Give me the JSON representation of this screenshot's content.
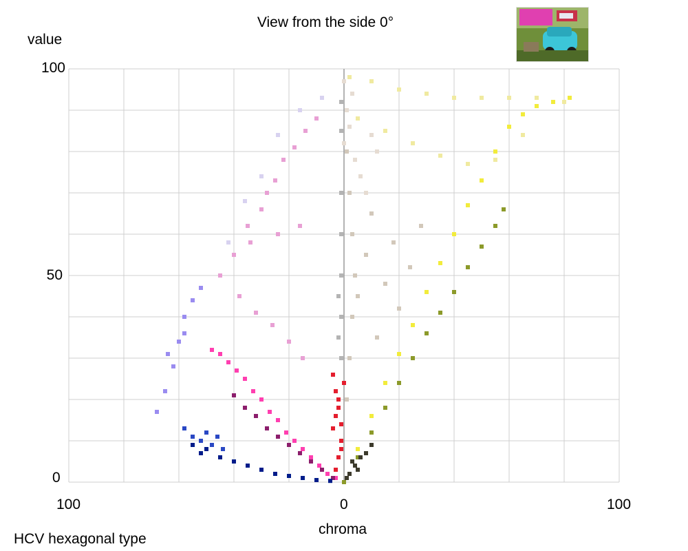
{
  "chart_data": {
    "type": "scatter",
    "title": "View from the side 0°",
    "xlabel": "chroma",
    "ylabel": "value",
    "footer": "HCV hexagonal type",
    "xlim": [
      -100,
      100
    ],
    "ylim": [
      0,
      100
    ],
    "x_tick_labels": [
      "100",
      "0",
      "100"
    ],
    "y_tick_labels": [
      "100",
      "50",
      "0"
    ],
    "grid": true,
    "series": [
      {
        "color": "#f2ec3c",
        "points": [
          [
            0,
            0
          ],
          [
            5,
            8
          ],
          [
            10,
            16
          ],
          [
            15,
            24
          ],
          [
            20,
            31
          ],
          [
            25,
            38
          ],
          [
            30,
            46
          ],
          [
            35,
            53
          ],
          [
            40,
            60
          ],
          [
            45,
            67
          ],
          [
            50,
            73
          ],
          [
            55,
            80
          ],
          [
            60,
            86
          ],
          [
            65,
            89
          ],
          [
            70,
            91
          ],
          [
            76,
            92
          ],
          [
            82,
            93
          ]
        ]
      },
      {
        "color": "#8c9a2a",
        "points": [
          [
            0,
            0
          ],
          [
            5,
            6
          ],
          [
            10,
            12
          ],
          [
            15,
            18
          ],
          [
            20,
            24
          ],
          [
            25,
            30
          ],
          [
            30,
            36
          ],
          [
            35,
            41
          ],
          [
            40,
            46
          ],
          [
            45,
            52
          ],
          [
            50,
            57
          ],
          [
            55,
            62
          ],
          [
            58,
            66
          ]
        ]
      },
      {
        "color": "#f0eaa0",
        "points": [
          [
            2,
            98
          ],
          [
            10,
            97
          ],
          [
            20,
            95
          ],
          [
            30,
            94
          ],
          [
            40,
            93
          ],
          [
            50,
            93
          ],
          [
            60,
            93
          ],
          [
            70,
            93
          ],
          [
            80,
            92
          ],
          [
            5,
            88
          ],
          [
            15,
            85
          ],
          [
            25,
            82
          ],
          [
            35,
            79
          ],
          [
            45,
            77
          ],
          [
            55,
            78
          ],
          [
            65,
            84
          ]
        ]
      },
      {
        "color": "#d2c8ba",
        "points": [
          [
            1,
            20
          ],
          [
            2,
            30
          ],
          [
            3,
            40
          ],
          [
            4,
            50
          ],
          [
            3,
            60
          ],
          [
            2,
            70
          ],
          [
            1,
            80
          ],
          [
            5,
            45
          ],
          [
            8,
            55
          ],
          [
            10,
            65
          ],
          [
            12,
            35
          ],
          [
            15,
            48
          ],
          [
            18,
            58
          ],
          [
            20,
            42
          ],
          [
            24,
            52
          ],
          [
            28,
            62
          ]
        ]
      },
      {
        "color": "#e6dcd2",
        "points": [
          [
            0,
            82
          ],
          [
            2,
            86
          ],
          [
            1,
            90
          ],
          [
            3,
            94
          ],
          [
            0,
            97
          ],
          [
            4,
            78
          ],
          [
            6,
            74
          ],
          [
            8,
            70
          ],
          [
            10,
            84
          ],
          [
            12,
            80
          ]
        ]
      },
      {
        "color": "#ff3fb0",
        "points": [
          [
            -48,
            32
          ],
          [
            -45,
            31
          ],
          [
            -42,
            29
          ],
          [
            -39,
            27
          ],
          [
            -36,
            25
          ],
          [
            -33,
            22
          ],
          [
            -30,
            20
          ],
          [
            -27,
            17
          ],
          [
            -24,
            15
          ],
          [
            -21,
            12
          ],
          [
            -18,
            10
          ],
          [
            -15,
            8
          ],
          [
            -12,
            6
          ],
          [
            -9,
            4
          ],
          [
            -6,
            2
          ],
          [
            -3,
            1
          ]
        ]
      },
      {
        "color": "#8c1e6c",
        "points": [
          [
            -40,
            21
          ],
          [
            -36,
            18
          ],
          [
            -32,
            16
          ],
          [
            -28,
            13
          ],
          [
            -24,
            11
          ],
          [
            -20,
            9
          ],
          [
            -16,
            7
          ],
          [
            -12,
            5
          ],
          [
            -8,
            3
          ],
          [
            -4,
            1
          ]
        ]
      },
      {
        "color": "#e41e2e",
        "points": [
          [
            -4,
            26
          ],
          [
            -3,
            22
          ],
          [
            -2,
            18
          ],
          [
            -1,
            14
          ],
          [
            -1,
            10
          ],
          [
            -2,
            6
          ],
          [
            -3,
            3
          ],
          [
            -4,
            13
          ],
          [
            -3,
            16
          ],
          [
            -2,
            20
          ],
          [
            0,
            24
          ],
          [
            -1,
            8
          ]
        ]
      },
      {
        "color": "#001c8a",
        "points": [
          [
            -45,
            6
          ],
          [
            -40,
            5
          ],
          [
            -35,
            4
          ],
          [
            -30,
            3
          ],
          [
            -25,
            2
          ],
          [
            -20,
            1.5
          ],
          [
            -15,
            1
          ],
          [
            -10,
            0.5
          ],
          [
            -5,
            0.3
          ],
          [
            -50,
            8
          ],
          [
            -55,
            9
          ],
          [
            -52,
            7
          ]
        ]
      },
      {
        "color": "#2a48c4",
        "points": [
          [
            -58,
            13
          ],
          [
            -55,
            11
          ],
          [
            -52,
            10
          ],
          [
            -48,
            9
          ],
          [
            -44,
            8
          ],
          [
            -50,
            12
          ],
          [
            -46,
            11
          ]
        ]
      },
      {
        "color": "#9a8cf0",
        "points": [
          [
            -68,
            17
          ],
          [
            -65,
            22
          ],
          [
            -62,
            28
          ],
          [
            -60,
            34
          ],
          [
            -58,
            40
          ],
          [
            -55,
            44
          ],
          [
            -52,
            47
          ],
          [
            -64,
            31
          ],
          [
            -58,
            36
          ]
        ]
      },
      {
        "color": "#e8a0d4",
        "points": [
          [
            -45,
            50
          ],
          [
            -40,
            55
          ],
          [
            -35,
            62
          ],
          [
            -30,
            66
          ],
          [
            -28,
            70
          ],
          [
            -25,
            73
          ],
          [
            -22,
            78
          ],
          [
            -18,
            81
          ],
          [
            -14,
            85
          ],
          [
            -10,
            88
          ],
          [
            -38,
            45
          ],
          [
            -32,
            41
          ],
          [
            -26,
            38
          ],
          [
            -20,
            34
          ],
          [
            -15,
            30
          ],
          [
            -34,
            58
          ],
          [
            -24,
            60
          ],
          [
            -16,
            62
          ]
        ]
      },
      {
        "color": "#d8d2f0",
        "points": [
          [
            -42,
            58
          ],
          [
            -36,
            68
          ],
          [
            -30,
            74
          ],
          [
            -24,
            84
          ],
          [
            -16,
            90
          ],
          [
            -8,
            93
          ]
        ]
      },
      {
        "color": "#b4b4b4",
        "points": [
          [
            -1,
            40
          ],
          [
            -1,
            50
          ],
          [
            -1,
            60
          ],
          [
            -1,
            70
          ],
          [
            -1,
            30
          ],
          [
            -2,
            45
          ],
          [
            -2,
            35
          ],
          [
            -1,
            85
          ],
          [
            -1,
            92
          ]
        ]
      },
      {
        "color": "#3c3a2c",
        "points": [
          [
            2,
            2
          ],
          [
            4,
            4
          ],
          [
            6,
            6
          ],
          [
            8,
            7
          ],
          [
            10,
            9
          ],
          [
            3,
            5
          ],
          [
            5,
            3
          ],
          [
            1,
            1
          ]
        ]
      }
    ]
  }
}
